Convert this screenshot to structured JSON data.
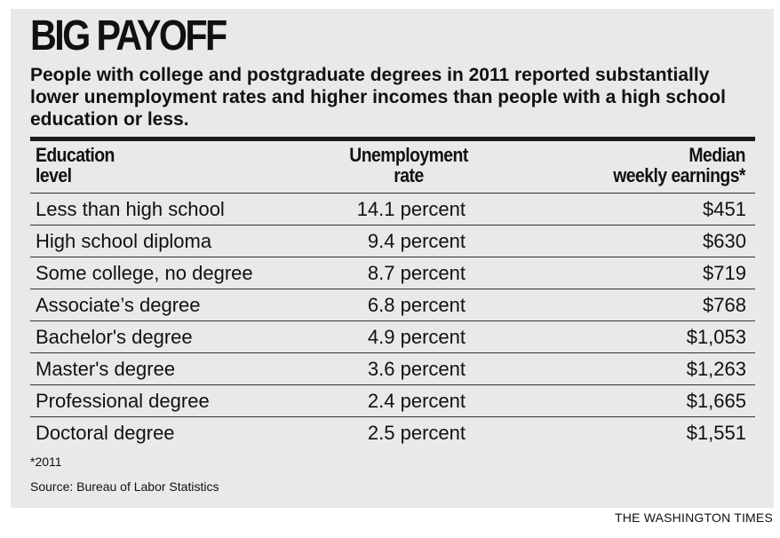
{
  "title": "BIG PAYOFF",
  "subtitle": "People with college and postgraduate degrees in 2011 reported substantially lower unemployment rates and higher incomes than people with a high school education or less.",
  "table": {
    "headers": {
      "education_line1": "Education",
      "education_line2": "level",
      "rate_line1": "Unemployment",
      "rate_line2": "rate",
      "earnings_line1": "Median",
      "earnings_line2": "weekly earnings*"
    },
    "rows": [
      {
        "education": "Less than high school",
        "rate": "14.1 percent",
        "earnings": "$451"
      },
      {
        "education": "High school diploma",
        "rate": "9.4 percent",
        "earnings": "$630"
      },
      {
        "education": "Some college, no degree",
        "rate": "8.7 percent",
        "earnings": "$719"
      },
      {
        "education": "Associate’s degree",
        "rate": "6.8 percent",
        "earnings": "$768"
      },
      {
        "education": "Bachelor's degree",
        "rate": "4.9 percent",
        "earnings": "$1,053"
      },
      {
        "education": "Master's degree",
        "rate": "3.6 percent",
        "earnings": "$1,263"
      },
      {
        "education": "Professional degree",
        "rate": "2.4 percent",
        "earnings": "$1,665"
      },
      {
        "education": "Doctoral degree",
        "rate": "2.5 percent",
        "earnings": "$1,551"
      }
    ]
  },
  "footnote": "*2011",
  "source": "Source: Bureau of Labor Statistics",
  "credit": "THE WASHINGTON TIMES",
  "chart_data": {
    "type": "table",
    "title": "BIG PAYOFF",
    "subtitle": "People with college and postgraduate degrees in 2011 reported substantially lower unemployment rates and higher incomes than people with a high school education or less.",
    "columns": [
      "Education level",
      "Unemployment rate",
      "Median weekly earnings*"
    ],
    "categories": [
      "Less than high school",
      "High school diploma",
      "Some college, no degree",
      "Associate’s degree",
      "Bachelor's degree",
      "Master's degree",
      "Professional degree",
      "Doctoral degree"
    ],
    "series": [
      {
        "name": "Unemployment rate",
        "values": [
          14.1,
          9.4,
          8.7,
          6.8,
          4.9,
          3.6,
          2.4,
          2.5
        ]
      },
      {
        "name": "Median weekly earnings*",
        "values": [
          451,
          630,
          719,
          768,
          1053,
          1263,
          1665,
          1551
        ]
      }
    ]
  }
}
